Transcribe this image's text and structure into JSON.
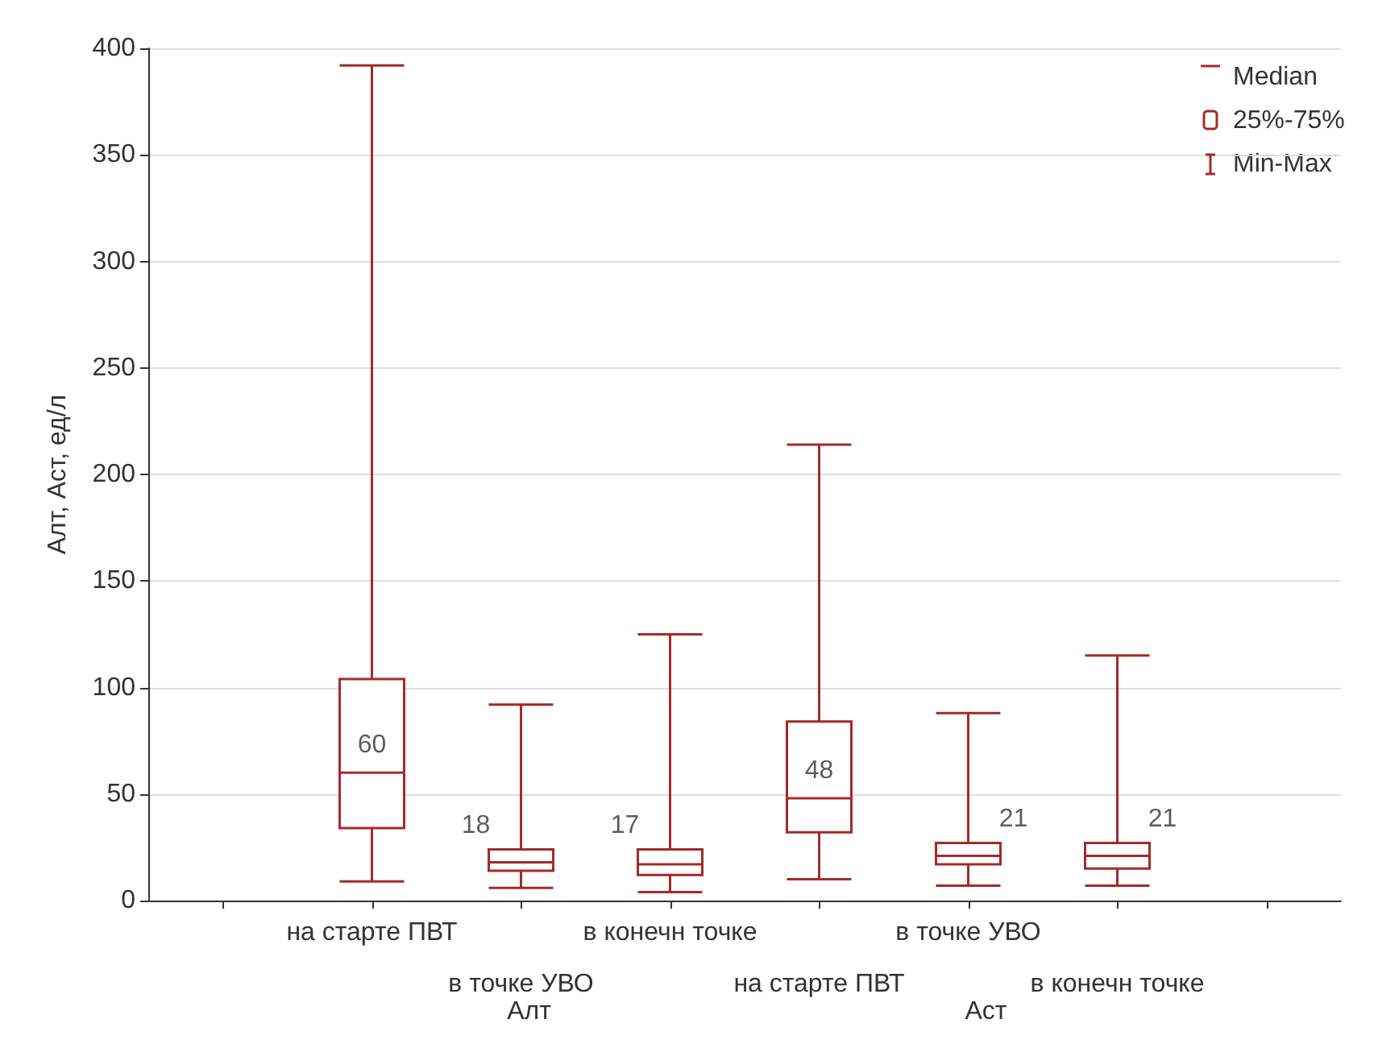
{
  "chart_data": {
    "type": "box",
    "ylabel": "Алт, Аст, ед/л",
    "categories": [
      null,
      "на старте ПВТ",
      "в точке УВО",
      "в конечн точке",
      "на старте ПВТ",
      "в точке УВО",
      "в конечн точке",
      null
    ],
    "boxes": [
      null,
      {
        "low": 9,
        "q1": 34,
        "median": 60,
        "q3": 104,
        "high": 392
      },
      {
        "low": 6,
        "q1": 14,
        "median": 18,
        "q3": 24,
        "high": 92
      },
      {
        "low": 4,
        "q1": 12,
        "median": 17,
        "q3": 24,
        "high": 125
      },
      {
        "low": 10,
        "q1": 32,
        "median": 48,
        "q3": 84,
        "high": 214
      },
      {
        "low": 7,
        "q1": 17,
        "median": 21,
        "q3": 27,
        "high": 88
      },
      {
        "low": 7,
        "q1": 15,
        "median": 21,
        "q3": 27,
        "high": 115
      },
      null
    ],
    "color": "#a52a2a",
    "value_labels": [
      null,
      "60",
      "18",
      "17",
      "48",
      "21",
      "21",
      null
    ],
    "ylim": [
      0,
      400
    ],
    "yticks": [
      0,
      50,
      100,
      150,
      200,
      250,
      300,
      350,
      400
    ],
    "grid": "y",
    "annotations": [
      "Median",
      "25%-75%",
      "Min-Max",
      "Алт",
      "Аст"
    ]
  }
}
